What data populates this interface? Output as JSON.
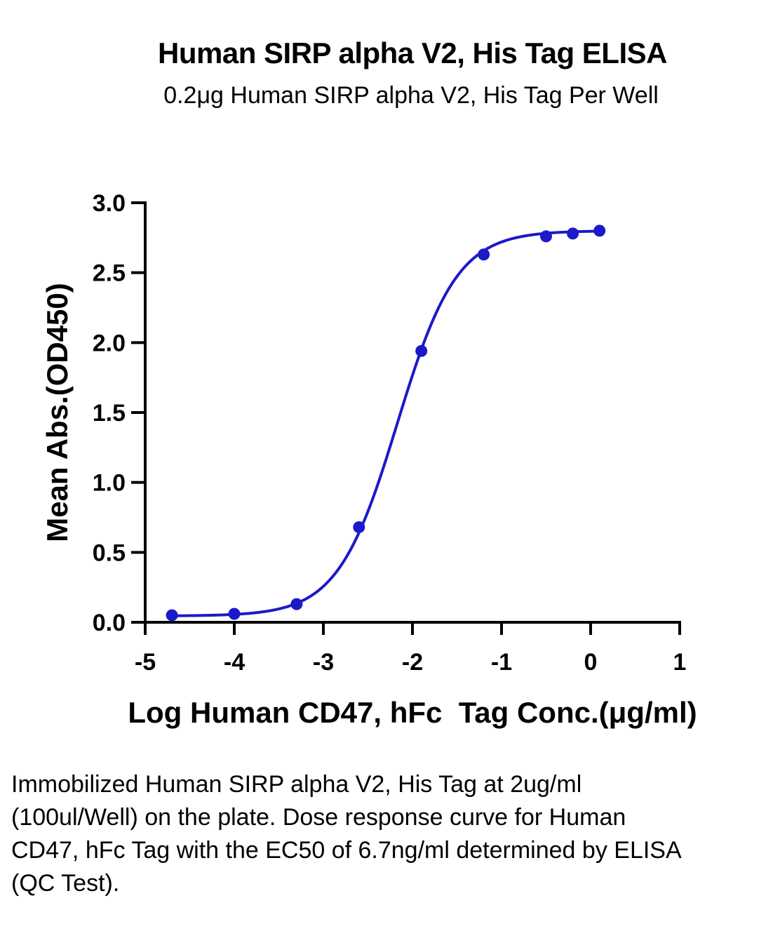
{
  "chart_data": {
    "type": "scatter",
    "title": "Human SIRP alpha V2, His Tag ELISA",
    "subtitle": "0.2μg Human SIRP alpha V2, His Tag Per Well",
    "xlabel": "Log Human CD47, hFc  Tag Conc.(μg/ml)",
    "ylabel": "Mean Abs.(OD450)",
    "xlim": [
      -5,
      1
    ],
    "ylim": [
      0,
      3.0
    ],
    "x_ticks": [
      -5,
      -4,
      -3,
      -2,
      -1,
      0,
      1
    ],
    "x_tick_labels": [
      "-5",
      "-4",
      "-3",
      "-2",
      "-1",
      "0",
      "1"
    ],
    "y_ticks": [
      0,
      0.5,
      1.0,
      1.5,
      2.0,
      2.5,
      3.0
    ],
    "y_tick_labels": [
      "0.0",
      "0.5",
      "1.0",
      "1.5",
      "2.0",
      "2.5",
      "3.0"
    ],
    "grid": false,
    "series": [
      {
        "x": [
          -4.7,
          -4.0,
          -3.3,
          -2.6,
          -1.9,
          -1.2,
          -0.5,
          -0.2,
          0.1
        ],
        "y": [
          0.05,
          0.06,
          0.13,
          0.68,
          1.94,
          2.63,
          2.76,
          2.78,
          2.8
        ],
        "color": "#1a1ac8",
        "fit": {
          "model": "4PL",
          "bottom": 0.045,
          "top": 2.8,
          "logEC50": -2.17,
          "hill": 1.3
        }
      }
    ]
  },
  "caption": "Immobilized Human SIRP alpha V2, His Tag at 2ug/ml (100ul/Well) on the plate. Dose response curve for Human CD47, hFc Tag with the EC50 of 6.7ng/ml determined by ELISA (QC Test)."
}
